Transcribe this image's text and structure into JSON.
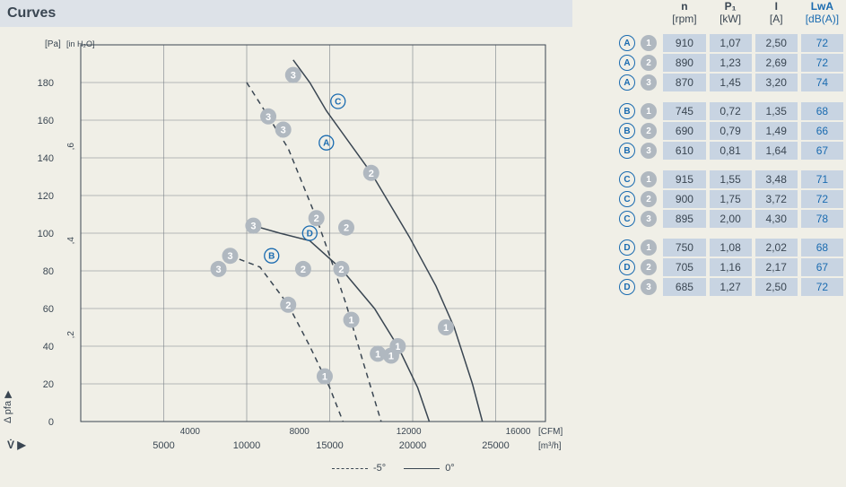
{
  "title": "Curves",
  "chart": {
    "type": "line",
    "background_color": "#f0efe7",
    "grid_color": "#7a8088",
    "axis_color": "#3a4652",
    "text_color": "#3a4652",
    "accent_color": "#1a6bb0",
    "marker_fill": "#b0b8c0",
    "marker_text": "#ffffff",
    "line_width": 1.5,
    "marker_radius": 9,
    "y_axis_left": {
      "label": "[Pa]",
      "ticks": [
        0,
        20,
        40,
        60,
        80,
        100,
        120,
        140,
        160,
        180
      ],
      "lim": [
        0,
        200
      ]
    },
    "y_axis_left2": {
      "label": "[in H₂O]",
      "ticks": [
        0.2,
        0.4,
        0.6
      ],
      "lim": [
        0,
        0.8
      ]
    },
    "x_axis_bottom": {
      "label": "[m³/h]",
      "ticks": [
        5000,
        10000,
        15000,
        20000,
        25000
      ],
      "lim": [
        0,
        28000
      ]
    },
    "x_axis_top": {
      "label": "[CFM]",
      "ticks": [
        4000,
        8000,
        12000,
        16000
      ],
      "lim": [
        0,
        17000
      ]
    },
    "y_arrow_label": "Δ pfa ▶",
    "x_arrow_label": "V̇ ▶",
    "curves": [
      {
        "id": "A",
        "style": "dashed",
        "label_pos": [
          14800,
          148
        ],
        "points": [
          [
            10000,
            180
          ],
          [
            11300,
            162
          ],
          [
            12500,
            145
          ],
          [
            14200,
            108
          ],
          [
            15000,
            88
          ],
          [
            16000,
            62
          ],
          [
            17000,
            32
          ],
          [
            18100,
            0
          ]
        ]
      },
      {
        "id": "B",
        "style": "dashed",
        "label_pos": [
          11500,
          88
        ],
        "points": [
          [
            9000,
            88
          ],
          [
            10800,
            82
          ],
          [
            12500,
            62
          ],
          [
            13800,
            40
          ],
          [
            15000,
            18
          ],
          [
            15800,
            0
          ]
        ]
      },
      {
        "id": "C",
        "style": "solid",
        "label_pos": [
          15500,
          170
        ],
        "points": [
          [
            12800,
            192
          ],
          [
            13800,
            180
          ],
          [
            14800,
            165
          ],
          [
            17500,
            132
          ],
          [
            19800,
            98
          ],
          [
            21400,
            72
          ],
          [
            22500,
            50
          ],
          [
            23600,
            20
          ],
          [
            24200,
            0
          ]
        ]
      },
      {
        "id": "D",
        "style": "solid",
        "label_pos": [
          13800,
          100
        ],
        "points": [
          [
            10400,
            104
          ],
          [
            12000,
            100
          ],
          [
            13800,
            96
          ],
          [
            15700,
            81
          ],
          [
            17700,
            60
          ],
          [
            19100,
            40
          ],
          [
            20300,
            18
          ],
          [
            21000,
            0
          ]
        ]
      }
    ],
    "markers": [
      {
        "curve": "A",
        "num": "3",
        "pos": [
          11300,
          162
        ]
      },
      {
        "curve": "A",
        "num": "2",
        "pos": [
          14200,
          108
        ]
      },
      {
        "curve": "A",
        "num": "1",
        "pos": [
          16300,
          54
        ]
      },
      {
        "curve": "B",
        "num": "3",
        "pos": [
          9000,
          88
        ]
      },
      {
        "curve": "B",
        "num": "2",
        "pos": [
          12500,
          62
        ]
      },
      {
        "curve": "B",
        "num": "1",
        "pos": [
          14700,
          24
        ]
      },
      {
        "curve": "C",
        "num": "3",
        "pos": [
          12800,
          184
        ]
      },
      {
        "curve": "C",
        "num": "2",
        "pos": [
          17500,
          132
        ]
      },
      {
        "curve": "C",
        "num": "1",
        "pos": [
          22000,
          50
        ]
      },
      {
        "curve": "D",
        "num": "3",
        "pos": [
          10400,
          104
        ]
      },
      {
        "curve": "D",
        "num": "2",
        "pos": [
          15700,
          81
        ]
      },
      {
        "curve": "D",
        "num": "1",
        "pos": [
          19100,
          40
        ]
      },
      {
        "curve": "extra",
        "num": "3",
        "pos": [
          8300,
          81
        ]
      },
      {
        "curve": "extra",
        "num": "2",
        "pos": [
          13400,
          81
        ]
      },
      {
        "curve": "extra",
        "num": "1",
        "pos": [
          17900,
          36
        ]
      },
      {
        "curve": "extra",
        "num": "3",
        "pos": [
          12200,
          155
        ]
      },
      {
        "curve": "extra",
        "num": "2",
        "pos": [
          16000,
          103
        ]
      },
      {
        "curve": "extra",
        "num": "1",
        "pos": [
          18700,
          35
        ]
      }
    ],
    "legend": [
      {
        "style": "dashed",
        "label": "-5°"
      },
      {
        "style": "solid",
        "label": "0°"
      }
    ]
  },
  "table": {
    "headers": [
      {
        "name": "n",
        "unit": "[rpm]",
        "color": "#3a4652"
      },
      {
        "name": "P₁",
        "unit": "[kW]",
        "color": "#3a4652"
      },
      {
        "name": "I",
        "unit": "[A]",
        "color": "#3a4652"
      },
      {
        "name": "LwA",
        "unit": "[dB(A)]",
        "color": "#1a6bb0"
      }
    ],
    "cell_bg": "#c8d4e2",
    "groups": [
      {
        "letter": "A",
        "rows": [
          {
            "num": "1",
            "n": "910",
            "p": "1,07",
            "i": "2,50",
            "lw": "72"
          },
          {
            "num": "2",
            "n": "890",
            "p": "1,23",
            "i": "2,69",
            "lw": "72"
          },
          {
            "num": "3",
            "n": "870",
            "p": "1,45",
            "i": "3,20",
            "lw": "74"
          }
        ]
      },
      {
        "letter": "B",
        "rows": [
          {
            "num": "1",
            "n": "745",
            "p": "0,72",
            "i": "1,35",
            "lw": "68"
          },
          {
            "num": "2",
            "n": "690",
            "p": "0,79",
            "i": "1,49",
            "lw": "66"
          },
          {
            "num": "3",
            "n": "610",
            "p": "0,81",
            "i": "1,64",
            "lw": "67"
          }
        ]
      },
      {
        "letter": "C",
        "rows": [
          {
            "num": "1",
            "n": "915",
            "p": "1,55",
            "i": "3,48",
            "lw": "71"
          },
          {
            "num": "2",
            "n": "900",
            "p": "1,75",
            "i": "3,72",
            "lw": "72"
          },
          {
            "num": "3",
            "n": "895",
            "p": "2,00",
            "i": "4,30",
            "lw": "78"
          }
        ]
      },
      {
        "letter": "D",
        "rows": [
          {
            "num": "1",
            "n": "750",
            "p": "1,08",
            "i": "2,02",
            "lw": "68"
          },
          {
            "num": "2",
            "n": "705",
            "p": "1,16",
            "i": "2,17",
            "lw": "67"
          },
          {
            "num": "3",
            "n": "685",
            "p": "1,27",
            "i": "2,50",
            "lw": "72"
          }
        ]
      }
    ]
  }
}
